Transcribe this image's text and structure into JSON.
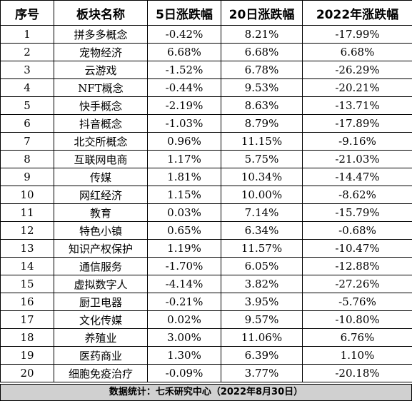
{
  "table": {
    "headers": [
      "序号",
      "板块名称",
      "5日涨跌幅",
      "20日涨跌幅",
      "2022年涨跌幅"
    ],
    "rows": [
      [
        "1",
        "拼多多概念",
        "-0.42%",
        "8.21%",
        "-17.99%"
      ],
      [
        "2",
        "宠物经济",
        "6.68%",
        "6.68%",
        "6.68%"
      ],
      [
        "3",
        "云游戏",
        "-1.52%",
        "6.78%",
        "-26.29%"
      ],
      [
        "4",
        "NFT概念",
        "-0.44%",
        "9.53%",
        "-20.21%"
      ],
      [
        "5",
        "快手概念",
        "-2.19%",
        "8.63%",
        "-13.71%"
      ],
      [
        "6",
        "抖音概念",
        "-1.03%",
        "8.79%",
        "-17.89%"
      ],
      [
        "7",
        "北交所概念",
        "0.96%",
        "11.15%",
        "-9.16%"
      ],
      [
        "8",
        "互联网电商",
        "1.17%",
        "5.75%",
        "-21.03%"
      ],
      [
        "9",
        "传媒",
        "1.81%",
        "10.34%",
        "-14.47%"
      ],
      [
        "10",
        "网红经济",
        "1.15%",
        "10.00%",
        "-8.62%"
      ],
      [
        "11",
        "教育",
        "0.03%",
        "7.14%",
        "-15.79%"
      ],
      [
        "12",
        "特色小镇",
        "0.65%",
        "6.34%",
        "-0.68%"
      ],
      [
        "13",
        "知识产权保护",
        "1.19%",
        "11.57%",
        "-10.47%"
      ],
      [
        "14",
        "通信服务",
        "-1.70%",
        "6.05%",
        "-12.88%"
      ],
      [
        "15",
        "虚拟数字人",
        "-4.14%",
        "3.82%",
        "-27.26%"
      ],
      [
        "16",
        "厨卫电器",
        "-0.21%",
        "3.95%",
        "-5.76%"
      ],
      [
        "17",
        "文化传媒",
        "0.02%",
        "9.57%",
        "-10.80%"
      ],
      [
        "18",
        "养殖业",
        "3.00%",
        "11.06%",
        "6.76%"
      ],
      [
        "19",
        "医药商业",
        "1.30%",
        "6.39%",
        "1.10%"
      ],
      [
        "20",
        "细胞免疫治疗",
        "-0.09%",
        "3.77%",
        "-20.18%"
      ]
    ]
  },
  "footer": {
    "source_note": "数据统计：七禾研究中心（2022年8月30日）"
  },
  "colors": {
    "footer_background": "#d0d0d0",
    "border": "#000000"
  }
}
